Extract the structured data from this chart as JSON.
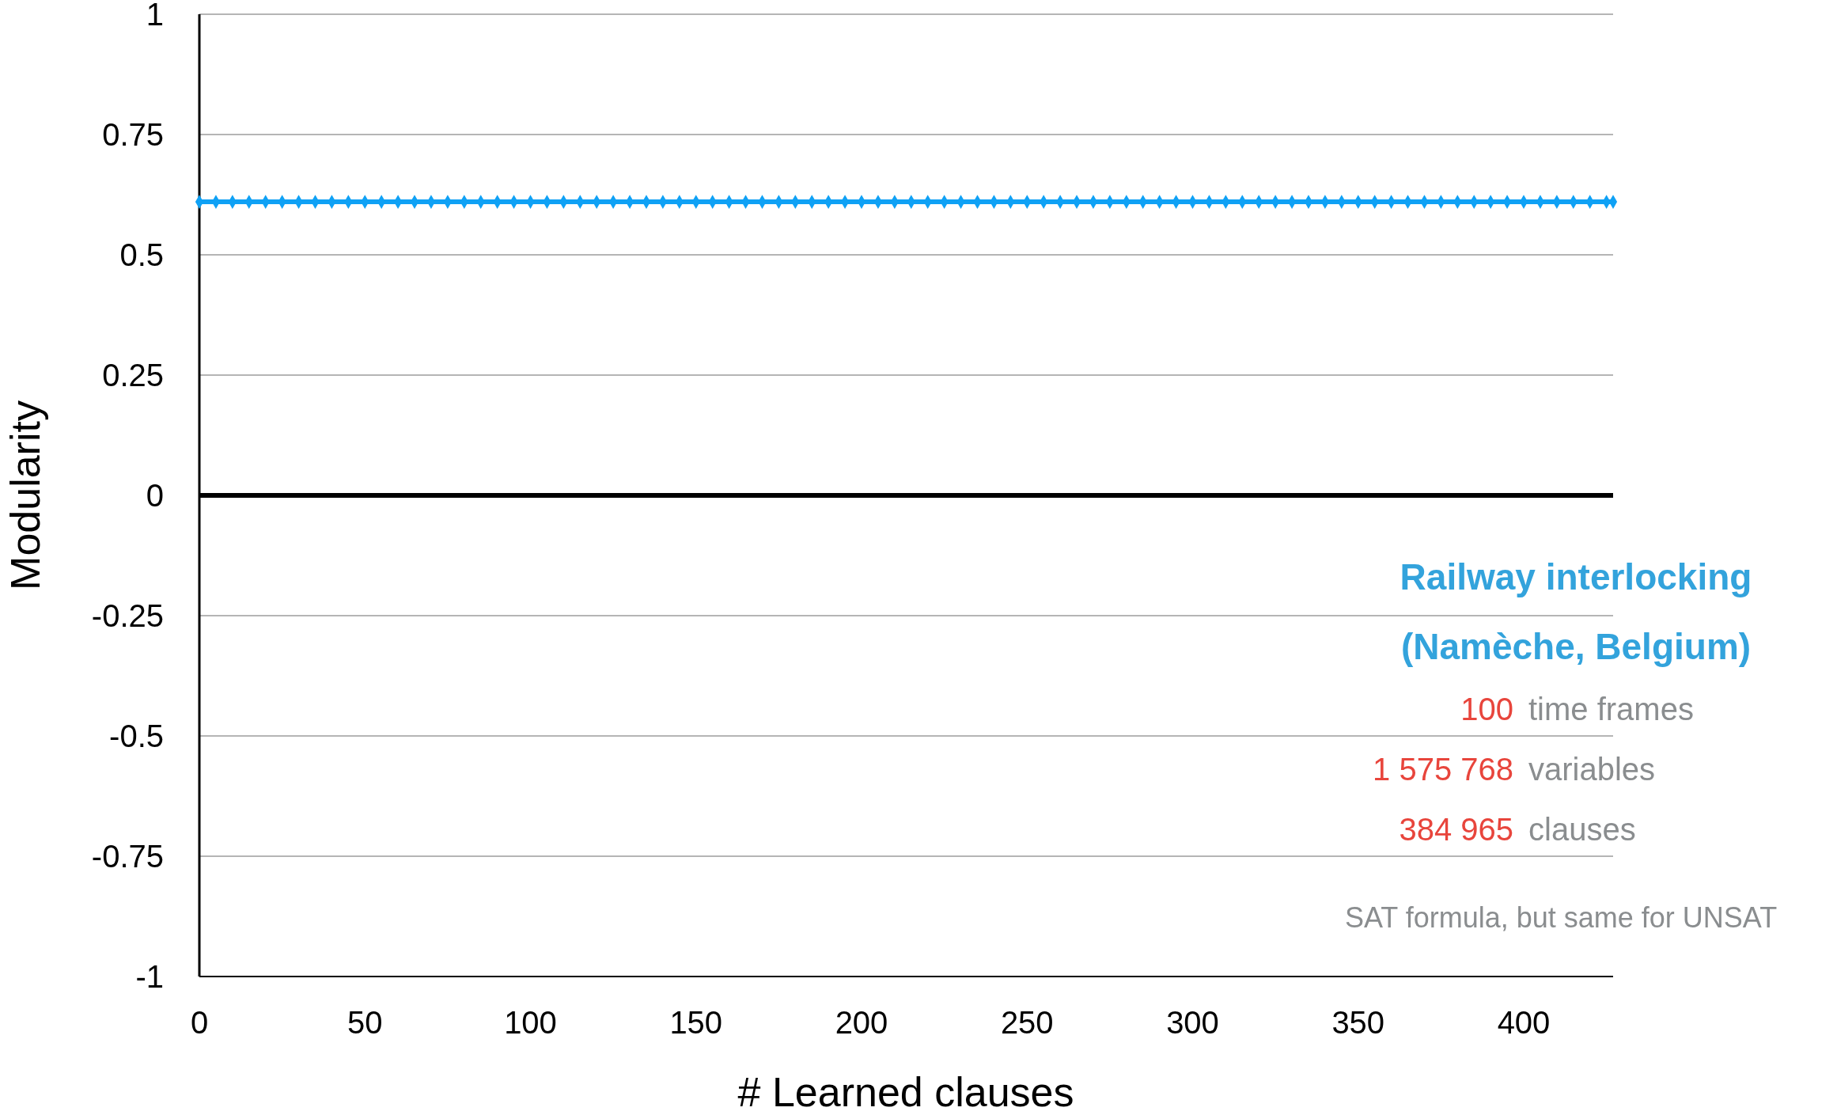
{
  "chart_data": {
    "type": "line",
    "xlabel": "# Learned clauses",
    "ylabel": "Modularity",
    "x": [
      0,
      5,
      10,
      15,
      20,
      25,
      30,
      35,
      40,
      45,
      50,
      55,
      60,
      65,
      70,
      75,
      80,
      85,
      90,
      95,
      100,
      105,
      110,
      115,
      120,
      125,
      130,
      135,
      140,
      145,
      150,
      155,
      160,
      165,
      170,
      175,
      180,
      185,
      190,
      195,
      200,
      205,
      210,
      215,
      220,
      225,
      230,
      235,
      240,
      245,
      250,
      255,
      260,
      265,
      270,
      275,
      280,
      285,
      290,
      295,
      300,
      305,
      310,
      315,
      320,
      325,
      330,
      335,
      340,
      345,
      350,
      355,
      360,
      365,
      370,
      375,
      380,
      385,
      390,
      395,
      400,
      405,
      410,
      415,
      420,
      425,
      427
    ],
    "series": [
      {
        "color": "#0fa1f5",
        "values": [
          0.61,
          0.61,
          0.61,
          0.61,
          0.61,
          0.61,
          0.61,
          0.61,
          0.61,
          0.61,
          0.61,
          0.61,
          0.61,
          0.61,
          0.61,
          0.61,
          0.61,
          0.61,
          0.61,
          0.61,
          0.61,
          0.61,
          0.61,
          0.61,
          0.61,
          0.61,
          0.61,
          0.61,
          0.61,
          0.61,
          0.61,
          0.61,
          0.61,
          0.61,
          0.61,
          0.61,
          0.61,
          0.61,
          0.61,
          0.61,
          0.61,
          0.61,
          0.61,
          0.61,
          0.61,
          0.61,
          0.61,
          0.61,
          0.61,
          0.61,
          0.61,
          0.61,
          0.61,
          0.61,
          0.61,
          0.61,
          0.61,
          0.61,
          0.61,
          0.61,
          0.61,
          0.61,
          0.61,
          0.61,
          0.61,
          0.61,
          0.61,
          0.61,
          0.61,
          0.61,
          0.61,
          0.61,
          0.61,
          0.61,
          0.61,
          0.61,
          0.61,
          0.61,
          0.61,
          0.61,
          0.61,
          0.61,
          0.61,
          0.61,
          0.61,
          0.61,
          0.61
        ]
      }
    ],
    "xlim": [
      0,
      427
    ],
    "xticks": [
      0,
      50,
      100,
      150,
      200,
      250,
      300,
      350,
      400
    ],
    "ylim": [
      -1,
      1
    ],
    "yticks": [
      -1,
      -0.75,
      -0.5,
      -0.25,
      0,
      0.25,
      0.5,
      0.75,
      1
    ],
    "grid": "y",
    "marker": "diamond",
    "line_style": "solid",
    "annotations": [
      "Railway interlocking",
      "(Namèche, Belgium)",
      "100 time frames",
      "1 575 768 variables",
      "384 965 clauses",
      "SAT formula, but same for UNSAT"
    ]
  }
}
